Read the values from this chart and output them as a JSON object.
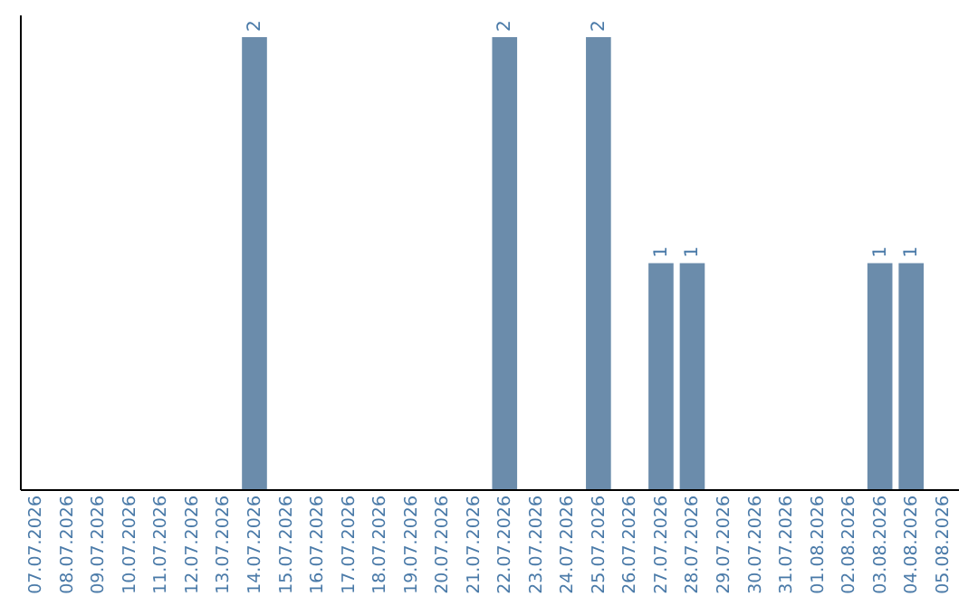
{
  "chart_data": {
    "type": "bar",
    "categories": [
      "07.07.2026",
      "08.07.2026",
      "09.07.2026",
      "10.07.2026",
      "11.07.2026",
      "12.07.2026",
      "13.07.2026",
      "14.07.2026",
      "15.07.2026",
      "16.07.2026",
      "17.07.2026",
      "18.07.2026",
      "19.07.2026",
      "20.07.2026",
      "21.07.2026",
      "22.07.2026",
      "23.07.2026",
      "24.07.2026",
      "25.07.2026",
      "26.07.2026",
      "27.07.2026",
      "28.07.2026",
      "29.07.2026",
      "30.07.2026",
      "31.07.2026",
      "01.08.2026",
      "02.08.2026",
      "03.08.2026",
      "04.08.2026",
      "05.08.2026"
    ],
    "values": [
      0,
      0,
      0,
      0,
      0,
      0,
      0,
      2,
      0,
      0,
      0,
      0,
      0,
      0,
      0,
      2,
      0,
      0,
      2,
      0,
      1,
      1,
      0,
      0,
      0,
      0,
      0,
      1,
      1,
      0
    ],
    "value_labels": [
      null,
      null,
      null,
      null,
      null,
      null,
      null,
      "2",
      null,
      null,
      null,
      null,
      null,
      null,
      null,
      "2",
      null,
      null,
      "2",
      null,
      "1",
      "1",
      null,
      null,
      null,
      null,
      null,
      "1",
      "1",
      null
    ],
    "color": "#6b8cab",
    "ylim": [
      0,
      2.1
    ],
    "tick_labels": "x"
  }
}
